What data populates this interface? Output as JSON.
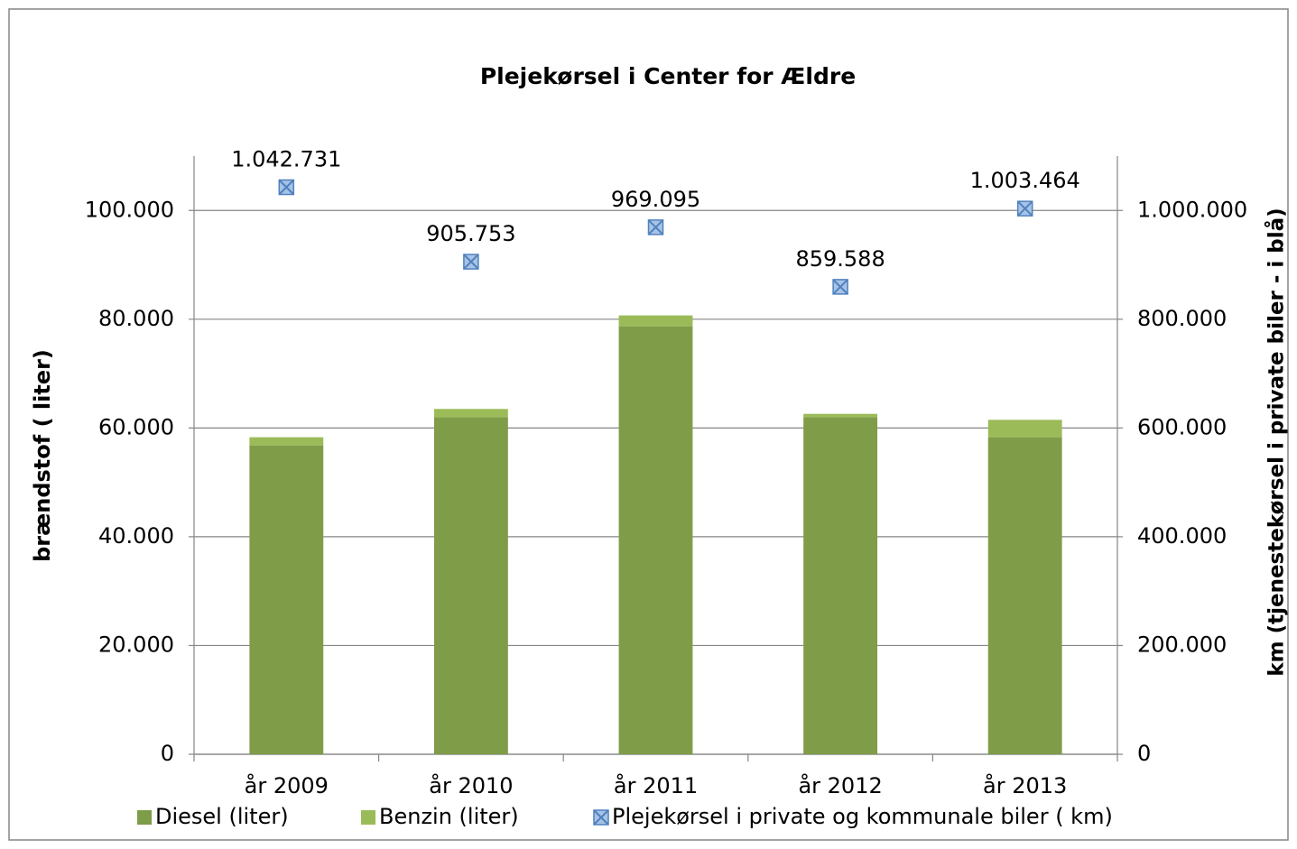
{
  "chart_data": {
    "type": "bar",
    "stacked": true,
    "title": "Plejekørsel i Center for Ældre",
    "y_label": "brændstof ( liter)",
    "y2_label": "km (tjenestekørsel  i  private biler - i blå)",
    "categories": [
      "år 2009",
      "år 2010",
      "år 2011",
      "år 2012",
      "år 2013"
    ],
    "series": [
      {
        "name": "Diesel (liter)",
        "color": "#7f9c48",
        "values": [
          56800,
          62000,
          78700,
          62000,
          58300
        ]
      },
      {
        "name": "Benzin (liter)",
        "color": "#9bbb59",
        "values": [
          1500,
          1500,
          2000,
          600,
          3200
        ]
      },
      {
        "name": "Plejekørsel i private og kommunale biler ( km)",
        "type": "scatter",
        "axis": "y2",
        "color": "#4f81bd",
        "values": [
          1042731,
          905753,
          969095,
          859588,
          1003464
        ],
        "value_labels": [
          "1.042.731",
          "905.753",
          "969.095",
          "859.588",
          "1.003.464"
        ]
      }
    ],
    "ylim": [
      0,
      110000
    ],
    "yticks": [
      0,
      {
        "value": 20000,
        "label": "20.000"
      },
      {
        "value": 40000,
        "label": "40.000"
      },
      {
        "value": 60000,
        "label": "60.000"
      },
      {
        "value": 80000,
        "label": "80.000"
      },
      {
        "value": 100000,
        "label": "100.000"
      }
    ],
    "y2lim": [
      0,
      1100000
    ],
    "y2ticks": [
      0,
      {
        "value": 200000,
        "label": "200.000"
      },
      {
        "value": 400000,
        "label": "400.000"
      },
      {
        "value": 600000,
        "label": "600.000"
      },
      {
        "value": 800000,
        "label": "800.000"
      },
      {
        "value": 1000000,
        "label": "1.000.000"
      }
    ],
    "grid": true,
    "legend": "bottom"
  }
}
